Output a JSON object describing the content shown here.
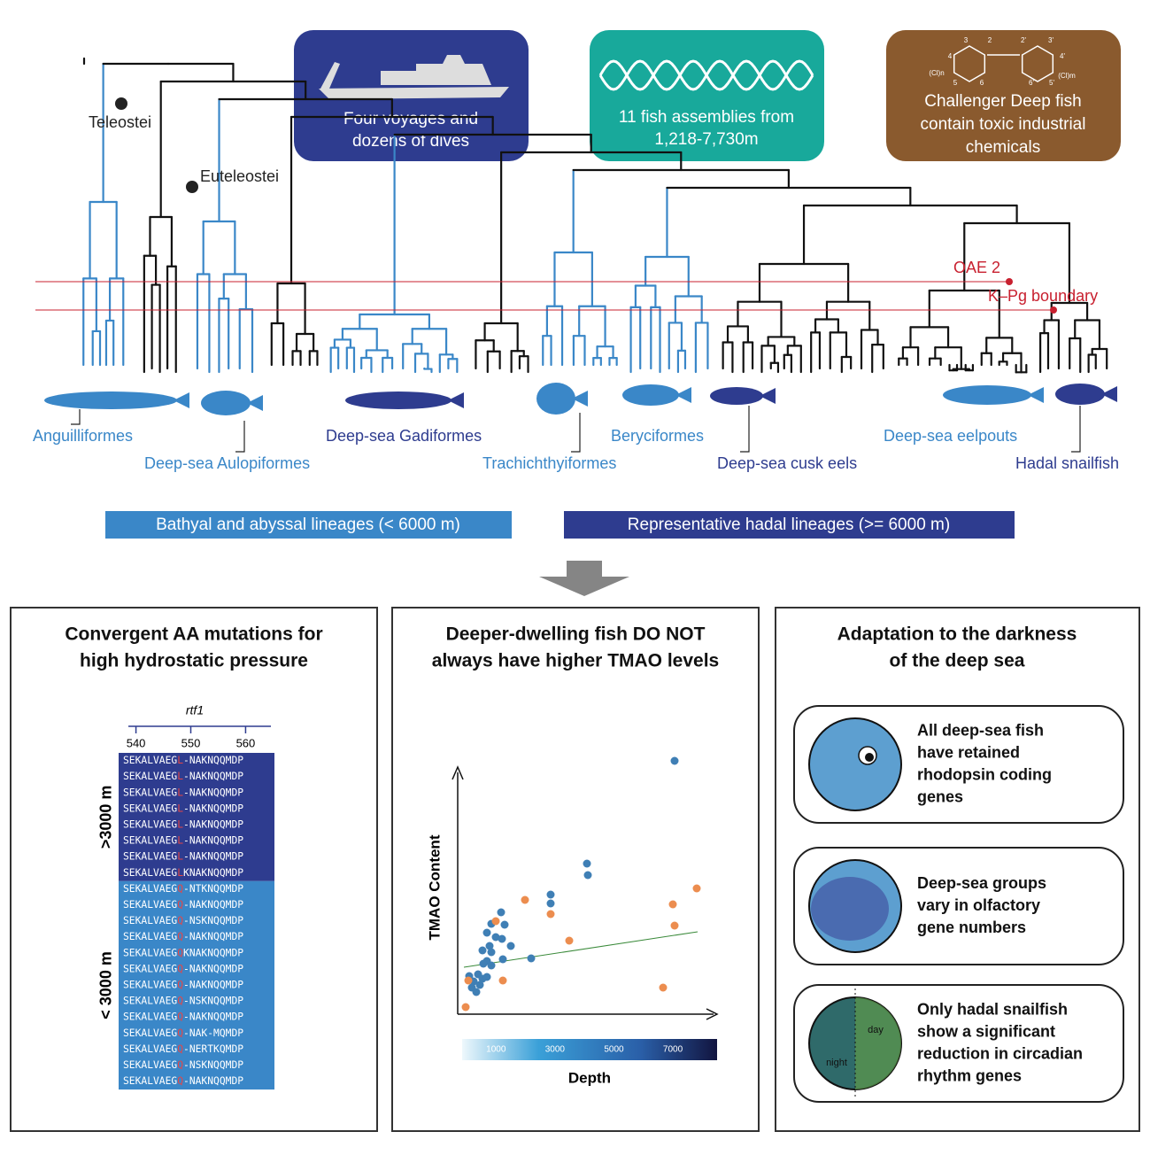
{
  "cards": [
    {
      "lines": [
        "Four voyages and",
        "dozens of dives"
      ]
    },
    {
      "lines": [
        "11 fish assemblies from",
        "1,218-7,730m"
      ]
    },
    {
      "lines": [
        "Challenger Deep fish",
        "contain toxic industrial",
        "chemicals"
      ],
      "structure_labels": [
        "3",
        "2",
        "2'",
        "3'",
        "4",
        "4'",
        "5",
        "6",
        "6'",
        "5'",
        "(Cl)n",
        "(Cl)m"
      ]
    }
  ],
  "tree": {
    "nodes": [
      "Teleostei",
      "Euteleostei"
    ],
    "events": [
      "OAE 2",
      "K–Pg boundary"
    ],
    "clades": [
      "Anguilliformes",
      "Deep-sea Aulopiformes",
      "Deep-sea Gadiformes",
      "Trachichthyiformes",
      "Beryciformes",
      "Deep-sea cusk eels",
      "Deep-sea eelpouts",
      "Hadal snailfish"
    ]
  },
  "legend": [
    "Bathyal and abyssal lineages (< 6000 m)",
    "Representative hadal lineages (>= 6000 m)"
  ],
  "panels": [
    {
      "title": [
        "Convergent AA mutations for",
        "high hydrostatic pressure"
      ],
      "gene": "rtf1",
      "xlim": [
        537,
        563
      ],
      "xticks": [
        540,
        550,
        560
      ],
      "groups": [
        ">3000 m",
        "< 3000 m"
      ],
      "deep": [
        {
          "pre": "SEKALVAEG",
          "site": "L",
          "post": "-NAKNQQMDP"
        },
        {
          "pre": "SEKALVAEG",
          "site": "L",
          "post": "-NAKNQQMDP"
        },
        {
          "pre": "SEKALVAEG",
          "site": "L",
          "post": "-NAKNQQMDP"
        },
        {
          "pre": "SEKALVAEG",
          "site": "L",
          "post": "-NAKNQQMDP"
        },
        {
          "pre": "SEKALVAEG",
          "site": "L",
          "post": "-NAKNQQMDP"
        },
        {
          "pre": "SEKALVAEG",
          "site": "L",
          "post": "-NAKNQQMDP"
        },
        {
          "pre": "SEKALVAEG",
          "site": "L",
          "post": "-NAKNQQMDP"
        },
        {
          "pre": "SEKALVAEG",
          "site": "L",
          "post": "KNAKNQQMDP"
        }
      ],
      "shallow": [
        {
          "pre": "SEKALVAEG",
          "site": "Q",
          "post": "-NTKNQQMDP"
        },
        {
          "pre": "SEKALVAEG",
          "site": "Q",
          "post": "-NAKNQQMDP"
        },
        {
          "pre": "SEKALVAEG",
          "site": "Q",
          "post": "-NSKNQQMDP"
        },
        {
          "pre": "SEKALVAEG",
          "site": "Q",
          "post": "-NAKNQQMDP"
        },
        {
          "pre": "SEKALVAEG",
          "site": "Q",
          "post": "KNAKNQQMDP"
        },
        {
          "pre": "SEKALVAEG",
          "site": "Q",
          "post": "-NAKNQQMDP"
        },
        {
          "pre": "SEKALVAEG",
          "site": "Q",
          "post": "-NAKNQQMDP"
        },
        {
          "pre": "SEKALVAEG",
          "site": "Q",
          "post": "-NSKNQQMDP"
        },
        {
          "pre": "SEKALVAEG",
          "site": "Q",
          "post": "-NAKNQQMDP"
        },
        {
          "pre": "SEKALVAEG",
          "site": "Q",
          "post": "-NAK-MQMDP"
        },
        {
          "pre": "SEKALVAEG",
          "site": "Q",
          "post": "-NERTKQMDP"
        },
        {
          "pre": "SEKALVAEG",
          "site": "Q",
          "post": "-NSKNQQMDP"
        },
        {
          "pre": "SEKALVAEG",
          "site": "Q",
          "post": "-NAKNQQMDP"
        }
      ]
    },
    {
      "title": [
        "Deeper-dwelling fish DO NOT",
        "always have higher TMAO levels"
      ],
      "ylabel": "TMAO Content",
      "xlabel": "Depth",
      "clim": [
        0,
        8500
      ],
      "cticks": [
        1000,
        3000,
        5000,
        7000
      ]
    },
    {
      "title": [
        "Adaptation to the darkness",
        "of the deep sea"
      ],
      "items": [
        {
          "lines": [
            "All deep-sea fish",
            "have retained",
            "rhodopsin coding",
            "genes"
          ]
        },
        {
          "lines": [
            "Deep-sea groups",
            "vary in olfactory",
            "gene numbers"
          ]
        },
        {
          "lines": [
            "Only hadal snailfish",
            "show a significant",
            "reduction in circadian",
            "rhythm genes"
          ]
        }
      ],
      "icon_labels": [
        "day",
        "night"
      ]
    }
  ]
}
